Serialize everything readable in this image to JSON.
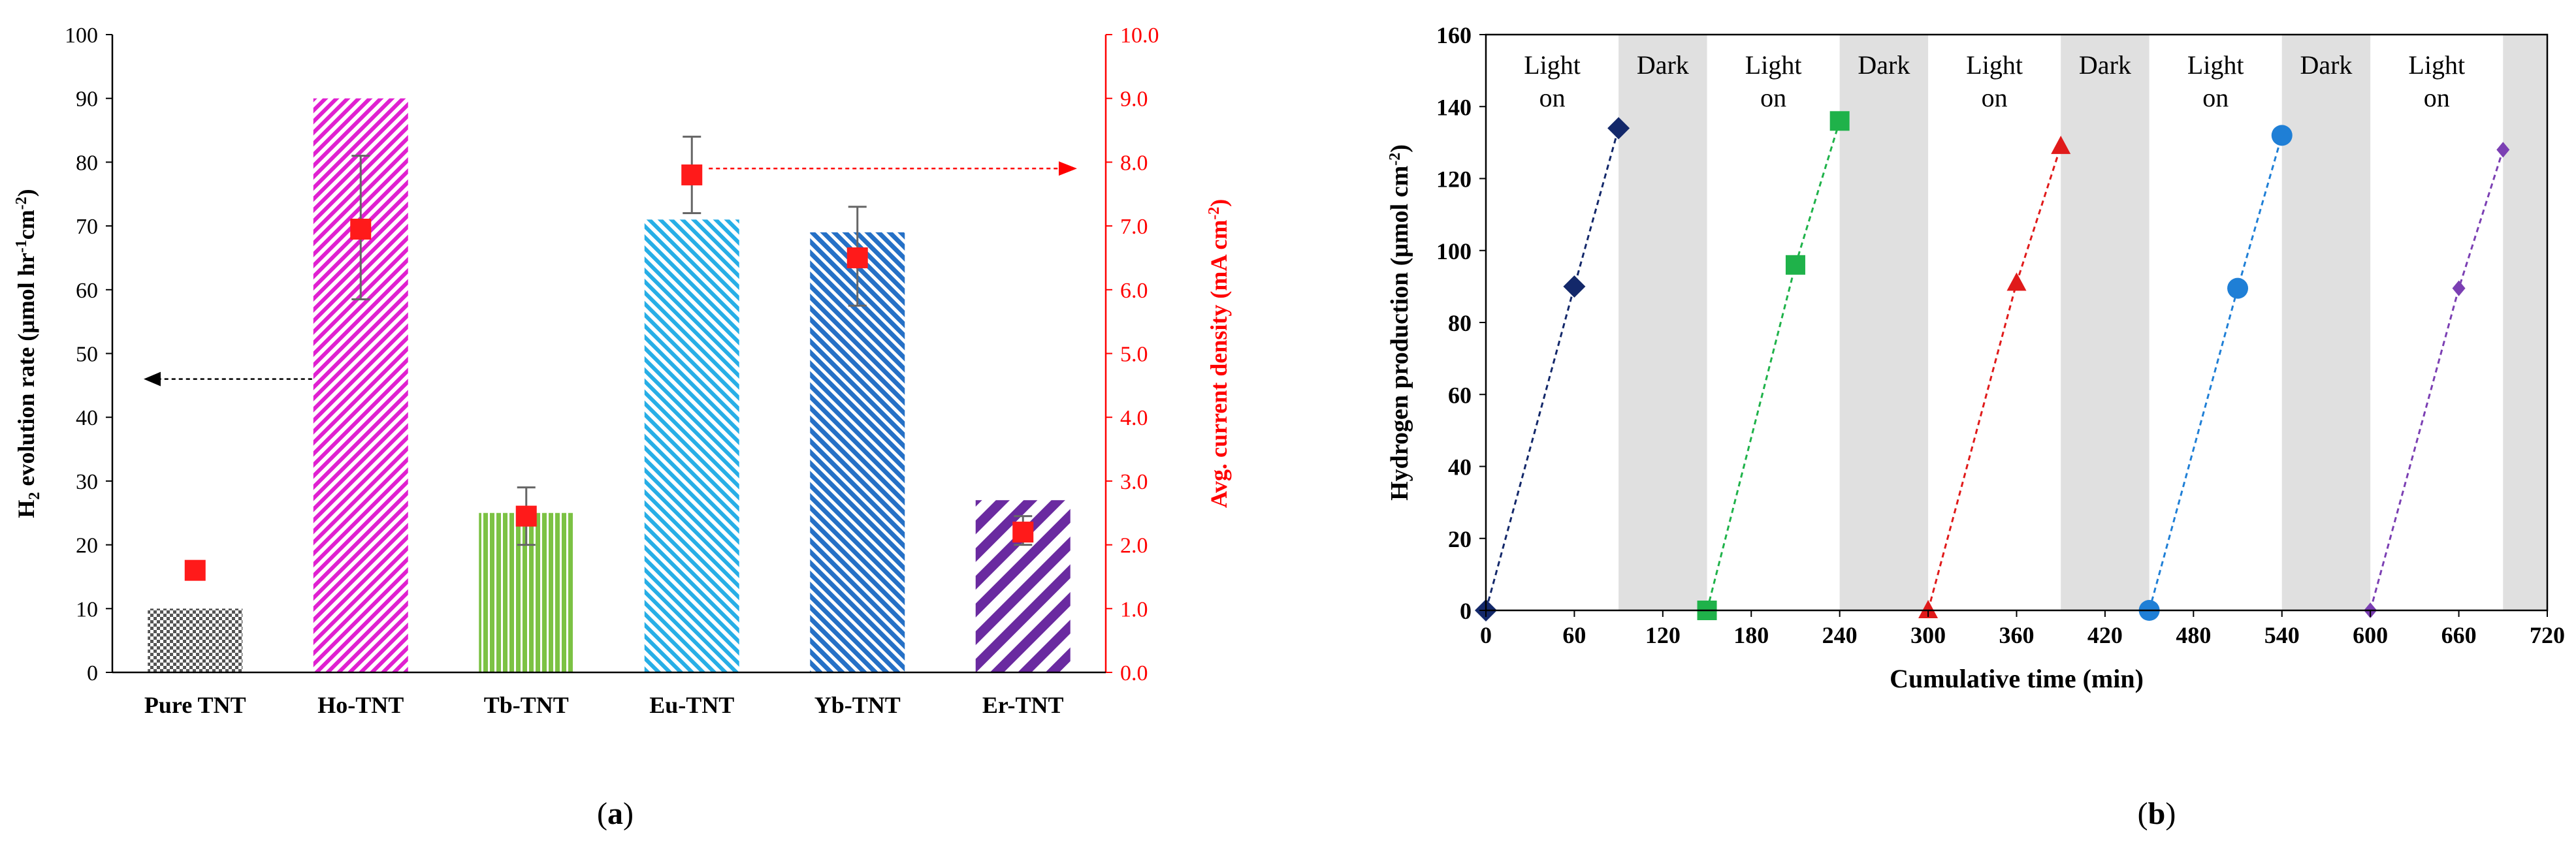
{
  "panel_labels": {
    "a": "a",
    "b": "b"
  },
  "colors": {
    "axis": "#000000",
    "right_axis": "#ff0000",
    "grid": "#d9d9d9",
    "dark_band": "#e0e0e0",
    "pure": "#555555",
    "ho": "#e020d0",
    "tb": "#7cc244",
    "eu": "#27aee6",
    "yb": "#2570c6",
    "er": "#6a2aa0",
    "marker": "#ff1a1a",
    "s1": "#13286a",
    "s2": "#1fb24a",
    "s3": "#e01a1a",
    "s4": "#1f7fd6",
    "s5": "#7b3fb3"
  },
  "chart_data": [
    {
      "id": "a",
      "type": "bar",
      "categories": [
        "Pure TNT",
        "Ho-TNT",
        "Tb-TNT",
        "Eu-TNT",
        "Yb-TNT",
        "Er-TNT"
      ],
      "ylabel_left": {
        "main": "H",
        "sub": "2",
        "rest1": " evolution rate (μmol hr",
        "sup1": "-1",
        "rest2": "cm",
        "sup2": "-2",
        "rest3": ")"
      },
      "ylabel_right": {
        "main": "Avg. current density (mA cm",
        "sup": "-2",
        "rest": ")"
      },
      "ylim_left": [
        0,
        100
      ],
      "ylim_right": [
        0,
        10
      ],
      "yticks_left": [
        "0",
        "10",
        "20",
        "30",
        "40",
        "50",
        "60",
        "70",
        "80",
        "90",
        "100"
      ],
      "yticks_right": [
        "0.0",
        "1.0",
        "2.0",
        "3.0",
        "4.0",
        "5.0",
        "6.0",
        "7.0",
        "8.0",
        "9.0",
        "10.0"
      ],
      "series": [
        {
          "name": "H2 evolution rate",
          "axis": "left",
          "values": [
            10,
            90,
            25,
            71,
            69,
            27
          ],
          "error_low": [
            null,
            58.5,
            20,
            72,
            57.5,
            20
          ],
          "error_high": [
            null,
            81,
            29,
            84,
            73,
            24.5
          ]
        },
        {
          "name": "Avg. current density",
          "axis": "right",
          "values": [
            1.6,
            6.95,
            2.45,
            7.8,
            6.5,
            2.2
          ]
        }
      ]
    },
    {
      "id": "b",
      "type": "line",
      "xlabel": "Cumulative time (min)",
      "ylabel": {
        "main": "Hydrogen production (μmol cm",
        "sup": "-2",
        "rest": ")"
      },
      "xlim": [
        0,
        720
      ],
      "ylim": [
        0,
        160
      ],
      "xticks": [
        "0",
        "60",
        "120",
        "180",
        "240",
        "300",
        "360",
        "420",
        "480",
        "540",
        "600",
        "660",
        "720"
      ],
      "yticks": [
        "0",
        "20",
        "40",
        "60",
        "80",
        "100",
        "120",
        "140",
        "160"
      ],
      "dark_periods": [
        [
          90,
          150
        ],
        [
          240,
          300
        ],
        [
          390,
          450
        ],
        [
          540,
          600
        ],
        [
          690,
          720
        ]
      ],
      "annotations": [
        {
          "lines": [
            "Light",
            "on"
          ],
          "x": 45
        },
        {
          "lines": [
            "Dark"
          ],
          "x": 120
        },
        {
          "lines": [
            "Light",
            "on"
          ],
          "x": 195
        },
        {
          "lines": [
            "Dark"
          ],
          "x": 270
        },
        {
          "lines": [
            "Light",
            "on"
          ],
          "x": 345
        },
        {
          "lines": [
            "Dark"
          ],
          "x": 420
        },
        {
          "lines": [
            "Light",
            "on"
          ],
          "x": 495
        },
        {
          "lines": [
            "Dark"
          ],
          "x": 570
        },
        {
          "lines": [
            "Light",
            "on"
          ],
          "x": 645
        }
      ],
      "series": [
        {
          "name": "Pure TNT",
          "marker": "diamond",
          "x": [
            0,
            60,
            90
          ],
          "y": [
            0,
            90,
            134
          ]
        },
        {
          "name": "Ho-TNT",
          "marker": "square",
          "x": [
            150,
            210,
            240
          ],
          "y": [
            0,
            96,
            136
          ]
        },
        {
          "name": "Tb-TNT",
          "marker": "triangle",
          "x": [
            300,
            360,
            390
          ],
          "y": [
            0,
            91,
            129
          ]
        },
        {
          "name": "Eu-TNT",
          "marker": "circle",
          "x": [
            450,
            510,
            540
          ],
          "y": [
            0,
            89.5,
            132
          ]
        },
        {
          "name": "Yb-TNT",
          "marker": "small-diamond",
          "x": [
            600,
            660,
            690
          ],
          "y": [
            0,
            89.5,
            128
          ]
        }
      ]
    }
  ]
}
